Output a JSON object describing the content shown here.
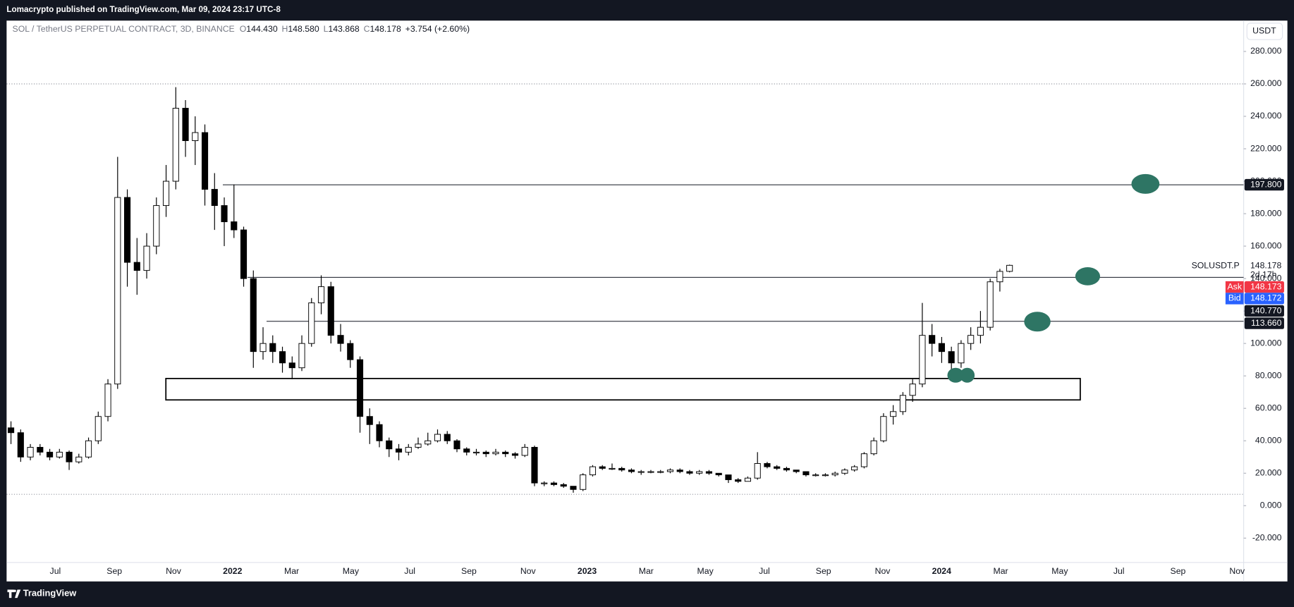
{
  "header": {
    "publisher": "Lomacrypto published on TradingView.com, Mar 09, 2024 23:17 UTC-8"
  },
  "chart_data": {
    "type": "candlestick",
    "title": "SOL / TetherUS PERPETUAL CONTRACT, 3D, BINANCE",
    "ohlc_legend": [
      {
        "name": "O",
        "value": 144.43,
        "label": "144.430"
      },
      {
        "name": "H",
        "value": 148.58,
        "label": "148.580"
      },
      {
        "name": "L",
        "value": 143.868,
        "label": "143.868"
      },
      {
        "name": "C",
        "value": 148.178,
        "label": "148.178"
      }
    ],
    "change": "+3.754 (+2.60%)",
    "currency": "USDT",
    "symbol": "SOLUSDT.P",
    "last_price": {
      "value": 148.178,
      "label": "148.178"
    },
    "countdown": "2d 17h",
    "ask": {
      "name": "Ask",
      "value": 148.173,
      "label": "148.173"
    },
    "bid": {
      "name": "Bid",
      "value": 148.172,
      "label": "148.172"
    },
    "levels": [
      {
        "value": 197.8,
        "label": "197.800"
      },
      {
        "value": 140.77,
        "label": "140.770"
      },
      {
        "value": 113.66,
        "label": "113.660"
      }
    ],
    "dotted_levels": [
      260,
      7
    ],
    "zone": [
      65.2,
      78.4
    ],
    "colors": {
      "up": "#ffffff",
      "down": "#000000",
      "ask": "#f23645",
      "bid": "#2962ff",
      "marker": "#2e7564"
    },
    "candles": [
      [
        48,
        52,
        38,
        45
      ],
      [
        45,
        47,
        27,
        30
      ],
      [
        30,
        38,
        28,
        36
      ],
      [
        36,
        38,
        31,
        33
      ],
      [
        33,
        35,
        28,
        30
      ],
      [
        30,
        35,
        29,
        33
      ],
      [
        33,
        34,
        22,
        27
      ],
      [
        27,
        32,
        26,
        30
      ],
      [
        30,
        42,
        29,
        40
      ],
      [
        40,
        58,
        38,
        55
      ],
      [
        55,
        78,
        52,
        75
      ],
      [
        75,
        215,
        72,
        190
      ],
      [
        190,
        195,
        135,
        150
      ],
      [
        150,
        165,
        130,
        145
      ],
      [
        145,
        168,
        140,
        160
      ],
      [
        160,
        190,
        155,
        185
      ],
      [
        185,
        210,
        178,
        200
      ],
      [
        200,
        258,
        195,
        245
      ],
      [
        245,
        250,
        215,
        225
      ],
      [
        225,
        240,
        210,
        230
      ],
      [
        230,
        235,
        185,
        195
      ],
      [
        195,
        205,
        170,
        185
      ],
      [
        185,
        190,
        160,
        175
      ],
      [
        175,
        198,
        165,
        170
      ],
      [
        170,
        172,
        135,
        140
      ],
      [
        140,
        145,
        85,
        95
      ],
      [
        95,
        110,
        90,
        100
      ],
      [
        100,
        105,
        88,
        95
      ],
      [
        95,
        98,
        82,
        88
      ],
      [
        88,
        92,
        78,
        85
      ],
      [
        85,
        105,
        83,
        100
      ],
      [
        100,
        128,
        98,
        125
      ],
      [
        125,
        142,
        118,
        135
      ],
      [
        135,
        138,
        100,
        105
      ],
      [
        105,
        112,
        95,
        100
      ],
      [
        100,
        102,
        85,
        90
      ],
      [
        90,
        92,
        45,
        55
      ],
      [
        55,
        60,
        38,
        50
      ],
      [
        50,
        52,
        36,
        40
      ],
      [
        40,
        42,
        30,
        35
      ],
      [
        35,
        38,
        28,
        33
      ],
      [
        33,
        38,
        31,
        36
      ],
      [
        36,
        42,
        35,
        38
      ],
      [
        38,
        45,
        37,
        40
      ],
      [
        40,
        47,
        39,
        44
      ],
      [
        44,
        46,
        38,
        40
      ],
      [
        40,
        41,
        33,
        35
      ],
      [
        35,
        36,
        31,
        33
      ],
      [
        33,
        35,
        31,
        33
      ],
      [
        33,
        34,
        30,
        32
      ],
      [
        32,
        35,
        31,
        33
      ],
      [
        33,
        34,
        30,
        32
      ],
      [
        32,
        33,
        29,
        31
      ],
      [
        31,
        38,
        30,
        36
      ],
      [
        36,
        37,
        12,
        14
      ],
      [
        14,
        15,
        12,
        14
      ],
      [
        14,
        15,
        12,
        13
      ],
      [
        13,
        14,
        11,
        12
      ],
      [
        12,
        12,
        8,
        10
      ],
      [
        10,
        20,
        9,
        19
      ],
      [
        19,
        25,
        18,
        24
      ],
      [
        24,
        25,
        22,
        23
      ],
      [
        23,
        26,
        22,
        23
      ],
      [
        23,
        24,
        21,
        22
      ],
      [
        22,
        23,
        20,
        21
      ],
      [
        21,
        22,
        19,
        21
      ],
      [
        21,
        22,
        20,
        21
      ],
      [
        21,
        22,
        20,
        21
      ],
      [
        21,
        23,
        20,
        22
      ],
      [
        22,
        23,
        20,
        21
      ],
      [
        21,
        22,
        19,
        20
      ],
      [
        20,
        22,
        19,
        21
      ],
      [
        21,
        22,
        19,
        20
      ],
      [
        20,
        20,
        18,
        19
      ],
      [
        19,
        19,
        14,
        16
      ],
      [
        16,
        17,
        14,
        15
      ],
      [
        15,
        18,
        15,
        17
      ],
      [
        17,
        33,
        16,
        26
      ],
      [
        26,
        27,
        23,
        24
      ],
      [
        24,
        25,
        22,
        23
      ],
      [
        23,
        24,
        21,
        22
      ],
      [
        22,
        22,
        20,
        21
      ],
      [
        21,
        21,
        18,
        19
      ],
      [
        19,
        20,
        18,
        19
      ],
      [
        19,
        20,
        18,
        19
      ],
      [
        19,
        21,
        18,
        20
      ],
      [
        20,
        23,
        19,
        22
      ],
      [
        22,
        25,
        21,
        24
      ],
      [
        24,
        33,
        23,
        32
      ],
      [
        32,
        42,
        31,
        40
      ],
      [
        40,
        57,
        39,
        55
      ],
      [
        55,
        62,
        50,
        58
      ],
      [
        58,
        70,
        56,
        68
      ],
      [
        68,
        78,
        64,
        75
      ],
      [
        75,
        125,
        73,
        105
      ],
      [
        105,
        112,
        92,
        100
      ],
      [
        100,
        104,
        88,
        95
      ],
      [
        95,
        98,
        80,
        88
      ],
      [
        88,
        102,
        85,
        100
      ],
      [
        100,
        110,
        96,
        105
      ],
      [
        105,
        120,
        100,
        110
      ],
      [
        110,
        140,
        108,
        138
      ],
      [
        138,
        146,
        132,
        144.43
      ],
      [
        144.43,
        148.58,
        143.868,
        148.178
      ]
    ],
    "ylim": [
      -35,
      299
    ],
    "yticks": [
      {
        "value": -20,
        "label": "-20.000"
      },
      {
        "value": 0,
        "label": "0.000"
      },
      {
        "value": 20,
        "label": "20.000"
      },
      {
        "value": 40,
        "label": "40.000"
      },
      {
        "value": 60,
        "label": "60.000"
      },
      {
        "value": 80,
        "label": "80.000"
      },
      {
        "value": 100,
        "label": "100.000"
      },
      {
        "value": 120,
        "label": "120.000"
      },
      {
        "value": 140,
        "label": "140.000"
      },
      {
        "value": 160,
        "label": "160.000"
      },
      {
        "value": 180,
        "label": "180.000"
      },
      {
        "value": 200,
        "label": "200.000"
      },
      {
        "value": 220,
        "label": "220.000"
      },
      {
        "value": 240,
        "label": "240.000"
      },
      {
        "value": 260,
        "label": "260.000"
      },
      {
        "value": 280,
        "label": "280.000"
      }
    ],
    "x_labels": [
      "Jul",
      "Sep",
      "Nov",
      "2022",
      "Mar",
      "May",
      "Jul",
      "Sep",
      "Nov",
      "2023",
      "Mar",
      "May",
      "Jul",
      "Sep",
      "Nov",
      "2024",
      "Mar",
      "May",
      "Jul",
      "Sep",
      "Nov"
    ]
  },
  "footer": {
    "brand": "TradingView"
  }
}
